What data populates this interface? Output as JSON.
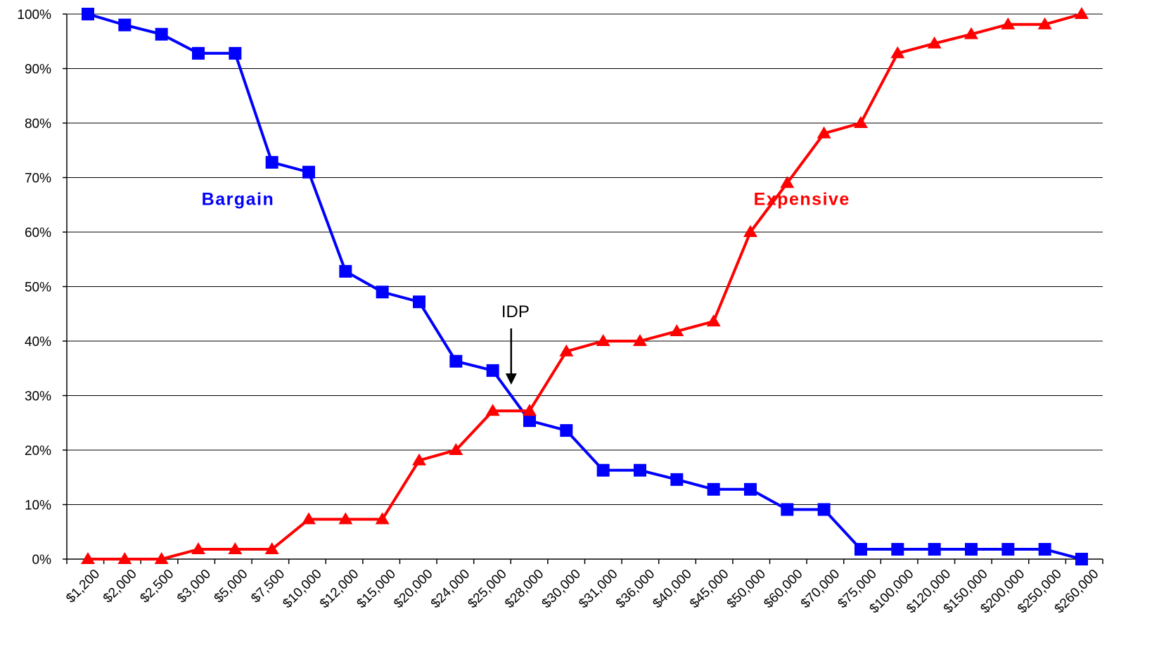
{
  "chart_data": {
    "type": "line",
    "categories": [
      "$1,200",
      "$2,000",
      "$2,500",
      "$3,000",
      "$5,000",
      "$7,500",
      "$10,000",
      "$12,000",
      "$15,000",
      "$20,000",
      "$24,000",
      "$25,000",
      "$28,000",
      "$30,000",
      "$31,000",
      "$36,000",
      "$40,000",
      "$45,000",
      "$50,000",
      "$60,000",
      "$70,000",
      "$75,000",
      "$100,000",
      "$120,000",
      "$150,000",
      "$200,000",
      "$250,000",
      "$260,000"
    ],
    "point_categories": [
      "$1,200",
      "$2,000",
      "$2,500",
      "$3,000",
      "$5,000",
      "$7,500",
      "$10,000",
      "$12,000",
      "$15,000",
      "$20,000",
      "$24,000",
      "$25,000",
      "$28,000",
      "$30,000",
      "$31,000",
      "$36,000",
      "$40,000",
      "$45,000",
      "$50,000",
      "$60,000",
      "$70,000",
      "$75,000",
      "$100,000",
      "$120,000",
      "$150,000",
      "$200,000",
      "$250,000",
      "$260,000"
    ],
    "series": [
      {
        "name": "Bargain",
        "color": "#0000ff",
        "marker": "square",
        "values": [
          100,
          98,
          96.3,
          92.8,
          92.8,
          72.8,
          71,
          52.8,
          49,
          47.2,
          36.3,
          34.6,
          25.4,
          23.6,
          16.3,
          16.3,
          14.6,
          12.8,
          12.8,
          9.1,
          9.1,
          1.8,
          1.8,
          1.8,
          1.8,
          1.8,
          1.8,
          0
        ]
      },
      {
        "name": "Expensive",
        "color": "#ff0000",
        "marker": "triangle",
        "values": [
          0,
          0,
          0,
          1.8,
          1.8,
          1.8,
          7.3,
          7.3,
          7.3,
          18.1,
          20,
          27.2,
          27.2,
          38.1,
          40,
          40,
          41.8,
          43.6,
          60,
          69,
          78.1,
          80,
          92.8,
          94.6,
          96.3,
          98.1,
          98.1,
          100
        ]
      }
    ],
    "yticks": [
      "0%",
      "10%",
      "20%",
      "30%",
      "40%",
      "50%",
      "60%",
      "70%",
      "80%",
      "90%",
      "100%"
    ],
    "ylim": [
      0,
      100
    ],
    "grid": true,
    "annotations": [
      {
        "text": "IDP",
        "arrow": "down",
        "x_between": [
          "$25,000",
          "$28,000"
        ],
        "y": 32
      }
    ],
    "series_labels": [
      {
        "text": "Bargain",
        "color": "#0000ff",
        "near_category": "$7,500",
        "y": 65
      },
      {
        "text": "Expensive",
        "color": "#ff0000",
        "near_category": "$70,000",
        "y": 65
      }
    ]
  }
}
